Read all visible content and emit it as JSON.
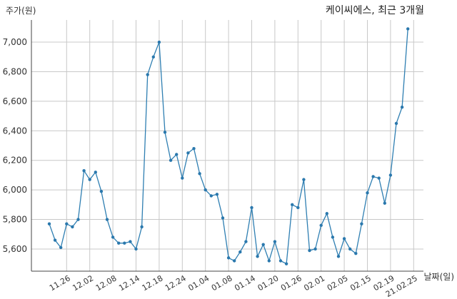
{
  "chart_data": {
    "type": "line",
    "title": "케이씨에스, 최근 3개월",
    "ylabel": "주가(원)",
    "xlabel": "날짜(일)",
    "ylim": [
      5450,
      7150
    ],
    "yticks": [
      5600,
      5800,
      6000,
      6200,
      6400,
      6600,
      6800,
      7000
    ],
    "ytick_labels": [
      "5,600",
      "5,800",
      "6,000",
      "6,200",
      "6,400",
      "6,600",
      "6,800",
      "7,000"
    ],
    "xtick_labels": [
      "11.26",
      "12.02",
      "12.08",
      "12.14",
      "12.18",
      "12.24",
      "01.04",
      "01.08",
      "01.14",
      "01.20",
      "01.26",
      "02.01",
      "02.05",
      "02.15",
      "02.19",
      "21.02.25"
    ],
    "xtick_index": [
      3,
      7,
      11,
      15,
      19,
      23,
      27,
      31,
      35,
      39,
      43,
      47,
      51,
      55,
      59,
      63
    ],
    "grid": true,
    "series": [
      {
        "values": [
          5770,
          5660,
          5610,
          5770,
          5750,
          5800,
          6130,
          6070,
          6120,
          5990,
          5800,
          5680,
          5640,
          5640,
          5650,
          5600,
          5750,
          6780,
          6900,
          7000,
          6390,
          6200,
          6240,
          6080,
          6250,
          6280,
          6110,
          6000,
          5960,
          5970,
          5810,
          5540,
          5520,
          5580,
          5650,
          5880,
          5550,
          5630,
          5520,
          5650,
          5520,
          5500,
          5900,
          5880,
          6070,
          5590,
          5600,
          5760,
          5840,
          5680,
          5550,
          5670,
          5600,
          5570,
          5770,
          5980,
          6090,
          6080,
          5910,
          6100,
          6450,
          6560,
          7090
        ]
      }
    ],
    "colors": {
      "line": "#2f7fb2",
      "grid": "#c8c8c8"
    }
  }
}
